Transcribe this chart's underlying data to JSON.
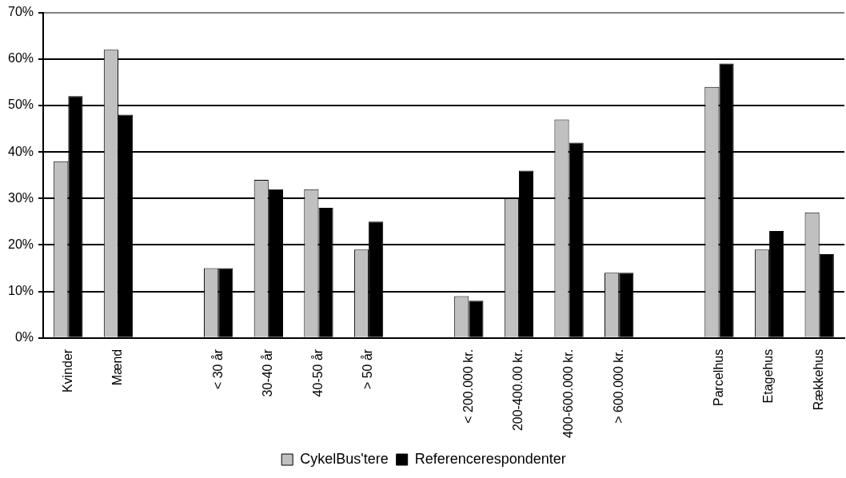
{
  "chart_data": {
    "type": "bar",
    "categories": [
      "Kvinder",
      "Mænd",
      null,
      "< 30 år",
      "30-40 år",
      "40-50 år",
      "> 50 år",
      null,
      "< 200.000 kr.",
      "200-400.00 kr.",
      "400-600.000 kr.",
      "> 600.000 kr.",
      null,
      "Parcelhus",
      "Etagehus",
      "Rækkehus"
    ],
    "series": [
      {
        "name": "CykelBus'tere",
        "color": "#c0c0c0",
        "values": [
          38,
          62,
          null,
          15,
          34,
          32,
          19,
          null,
          9,
          30,
          47,
          14,
          null,
          54,
          19,
          27
        ]
      },
      {
        "name": "Referencerespondenter",
        "color": "#000000",
        "values": [
          52,
          48,
          null,
          15,
          32,
          28,
          25,
          null,
          8,
          36,
          42,
          14,
          null,
          59,
          23,
          18
        ]
      }
    ],
    "ylim": [
      0,
      70
    ],
    "yticks": [
      {
        "value": 0,
        "label": "0%"
      },
      {
        "value": 10,
        "label": "10%"
      },
      {
        "value": 20,
        "label": "20%"
      },
      {
        "value": 30,
        "label": "30%"
      },
      {
        "value": 40,
        "label": "40%"
      },
      {
        "value": 50,
        "label": "50%"
      },
      {
        "value": 60,
        "label": "60%"
      },
      {
        "value": 70,
        "label": "70%"
      }
    ],
    "grid": "y",
    "legend": "bottom"
  }
}
